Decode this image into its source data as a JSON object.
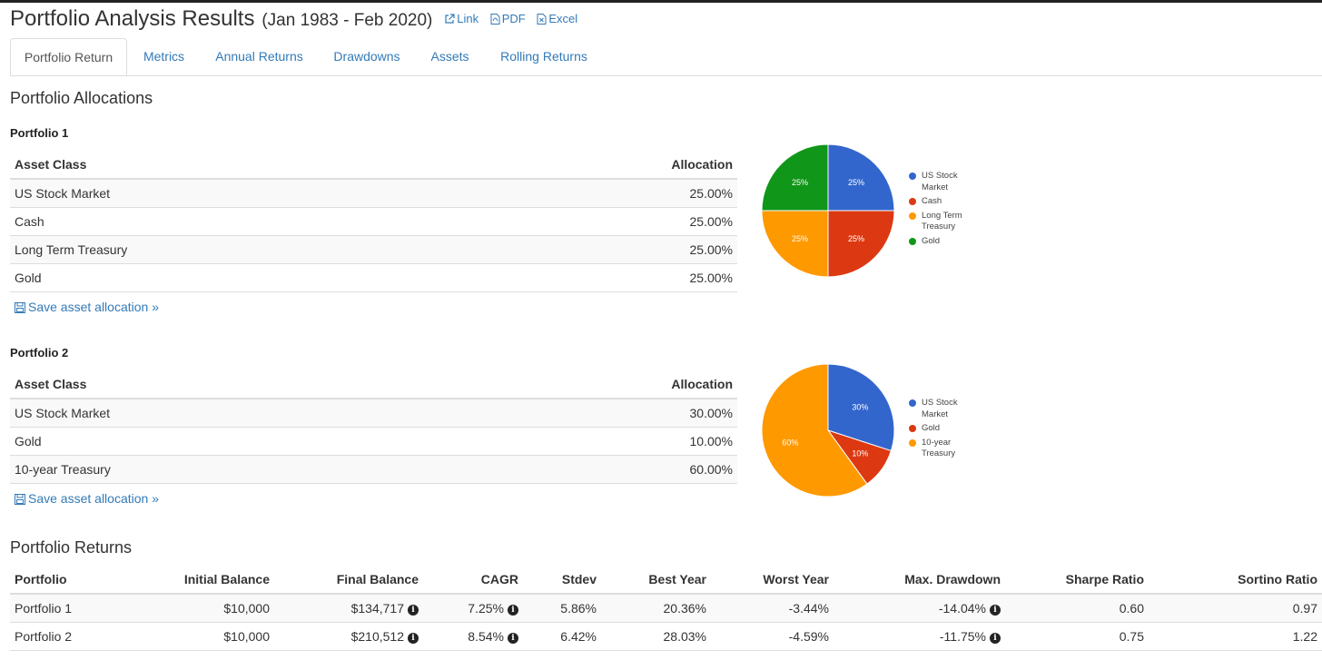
{
  "header": {
    "title": "Portfolio Analysis Results",
    "date_range": "(Jan 1983 - Feb 2020)",
    "links": [
      {
        "label": "Link",
        "icon": "external-link-icon"
      },
      {
        "label": "PDF",
        "icon": "pdf-file-icon"
      },
      {
        "label": "Excel",
        "icon": "excel-file-icon"
      }
    ]
  },
  "tabs": [
    {
      "label": "Portfolio Return",
      "active": true
    },
    {
      "label": "Metrics"
    },
    {
      "label": "Annual Returns"
    },
    {
      "label": "Drawdowns"
    },
    {
      "label": "Assets"
    },
    {
      "label": "Rolling Returns"
    }
  ],
  "allocations": {
    "heading": "Portfolio Allocations",
    "col_asset": "Asset Class",
    "col_alloc": "Allocation",
    "save_label": "Save asset allocation »",
    "portfolios": [
      {
        "name": "Portfolio 1",
        "rows": [
          {
            "asset": "US Stock Market",
            "allocation": "25.00%"
          },
          {
            "asset": "Cash",
            "allocation": "25.00%"
          },
          {
            "asset": "Long Term Treasury",
            "allocation": "25.00%"
          },
          {
            "asset": "Gold",
            "allocation": "25.00%"
          }
        ]
      },
      {
        "name": "Portfolio 2",
        "rows": [
          {
            "asset": "US Stock Market",
            "allocation": "30.00%"
          },
          {
            "asset": "Gold",
            "allocation": "10.00%"
          },
          {
            "asset": "10-year Treasury",
            "allocation": "60.00%"
          }
        ]
      }
    ]
  },
  "chart_data": [
    {
      "type": "pie",
      "title": "",
      "categories": [
        "US Stock Market",
        "Cash",
        "Long Term Treasury",
        "Gold"
      ],
      "values": [
        25,
        25,
        25,
        25
      ],
      "labels": [
        "25%",
        "25%",
        "25%",
        "25%"
      ],
      "colors": [
        "#3366cc",
        "#dc3912",
        "#ff9900",
        "#109618"
      ],
      "legend": [
        "US Stock",
        "Market",
        "Cash",
        "Long Term",
        "Treasury",
        "Gold"
      ],
      "legend_position": "right"
    },
    {
      "type": "pie",
      "title": "",
      "categories": [
        "US Stock Market",
        "Gold",
        "10-year Treasury"
      ],
      "values": [
        30,
        10,
        60
      ],
      "labels": [
        "30%",
        "10%",
        "60%"
      ],
      "colors": [
        "#3366cc",
        "#dc3912",
        "#ff9900"
      ],
      "legend": [
        "US Stock",
        "Market",
        "Gold",
        "10-year",
        "Treasury"
      ],
      "legend_position": "right"
    }
  ],
  "returns": {
    "heading": "Portfolio Returns",
    "columns": [
      "Portfolio",
      "Initial Balance",
      "Final Balance",
      "CAGR",
      "Stdev",
      "Best Year",
      "Worst Year",
      "Max. Drawdown",
      "Sharpe Ratio",
      "Sortino Ratio"
    ],
    "rows": [
      {
        "portfolio": "Portfolio 1",
        "initial": "$10,000",
        "final": "$134,717",
        "cagr": "7.25%",
        "stdev": "5.86%",
        "best": "20.36%",
        "worst": "-3.44%",
        "maxdd": "-14.04%",
        "sharpe": "0.60",
        "sortino": "0.97"
      },
      {
        "portfolio": "Portfolio 2",
        "initial": "$10,000",
        "final": "$210,512",
        "cagr": "8.54%",
        "stdev": "6.42%",
        "best": "28.03%",
        "worst": "-4.59%",
        "maxdd": "-11.75%",
        "sharpe": "0.75",
        "sortino": "1.22"
      }
    ]
  }
}
